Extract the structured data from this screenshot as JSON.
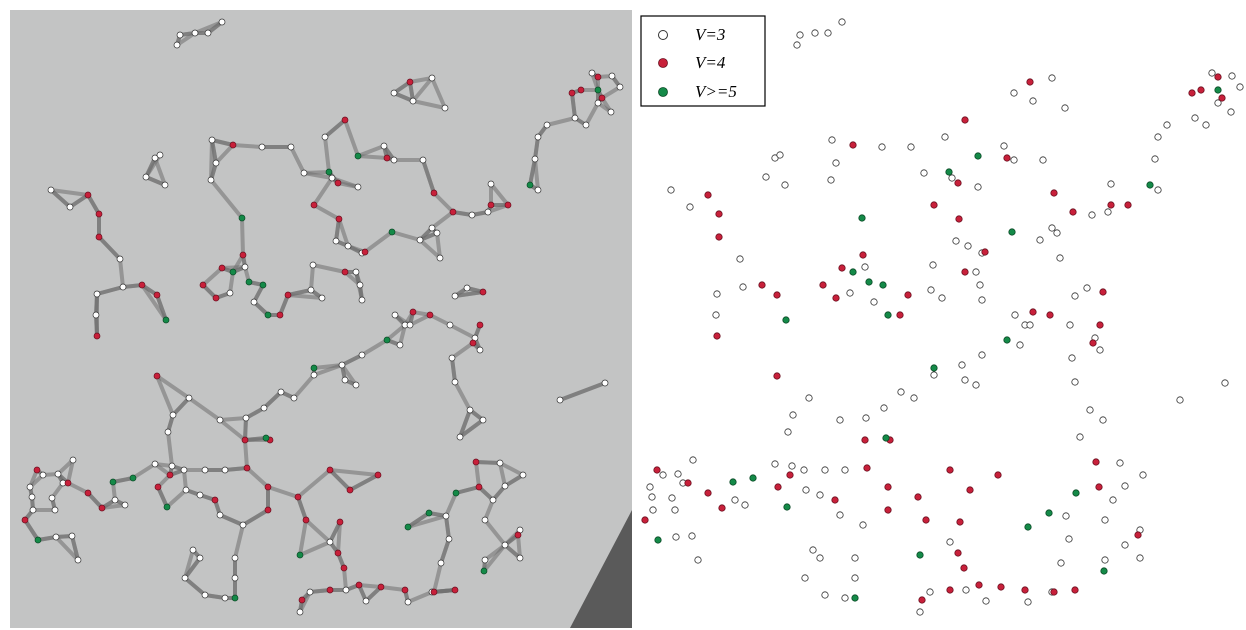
{
  "legend": {
    "items": [
      {
        "label": "V=3"
      },
      {
        "label": "V=4"
      },
      {
        "label": "V>=5"
      }
    ]
  }
}
